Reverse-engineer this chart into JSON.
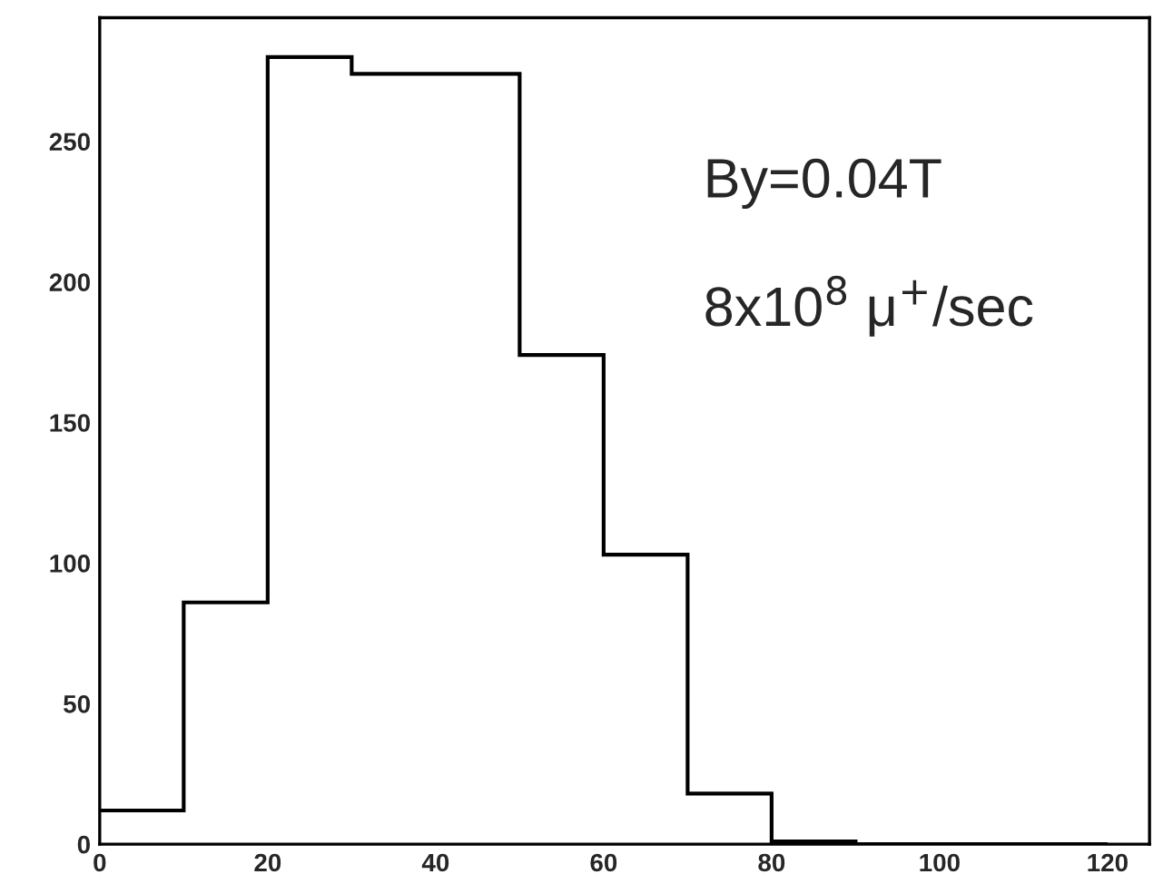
{
  "chart_data": {
    "type": "histogram",
    "bins": [
      0,
      10,
      20,
      30,
      40,
      50,
      60,
      70,
      80,
      90,
      100,
      110,
      120
    ],
    "values": [
      12,
      86,
      280,
      274,
      274,
      174,
      103,
      18,
      1,
      0,
      0,
      0
    ],
    "color": "#000000",
    "xlim": [
      0,
      125
    ],
    "ylim": [
      0,
      294
    ],
    "xticks": [
      0,
      20,
      40,
      60,
      80,
      100,
      120
    ],
    "yticks": [
      0,
      50,
      100,
      150,
      200,
      250
    ],
    "grid": false,
    "annotations": [
      "By=0.04T",
      "8x10$^{8}$ μ$^{+}$/sec"
    ]
  }
}
